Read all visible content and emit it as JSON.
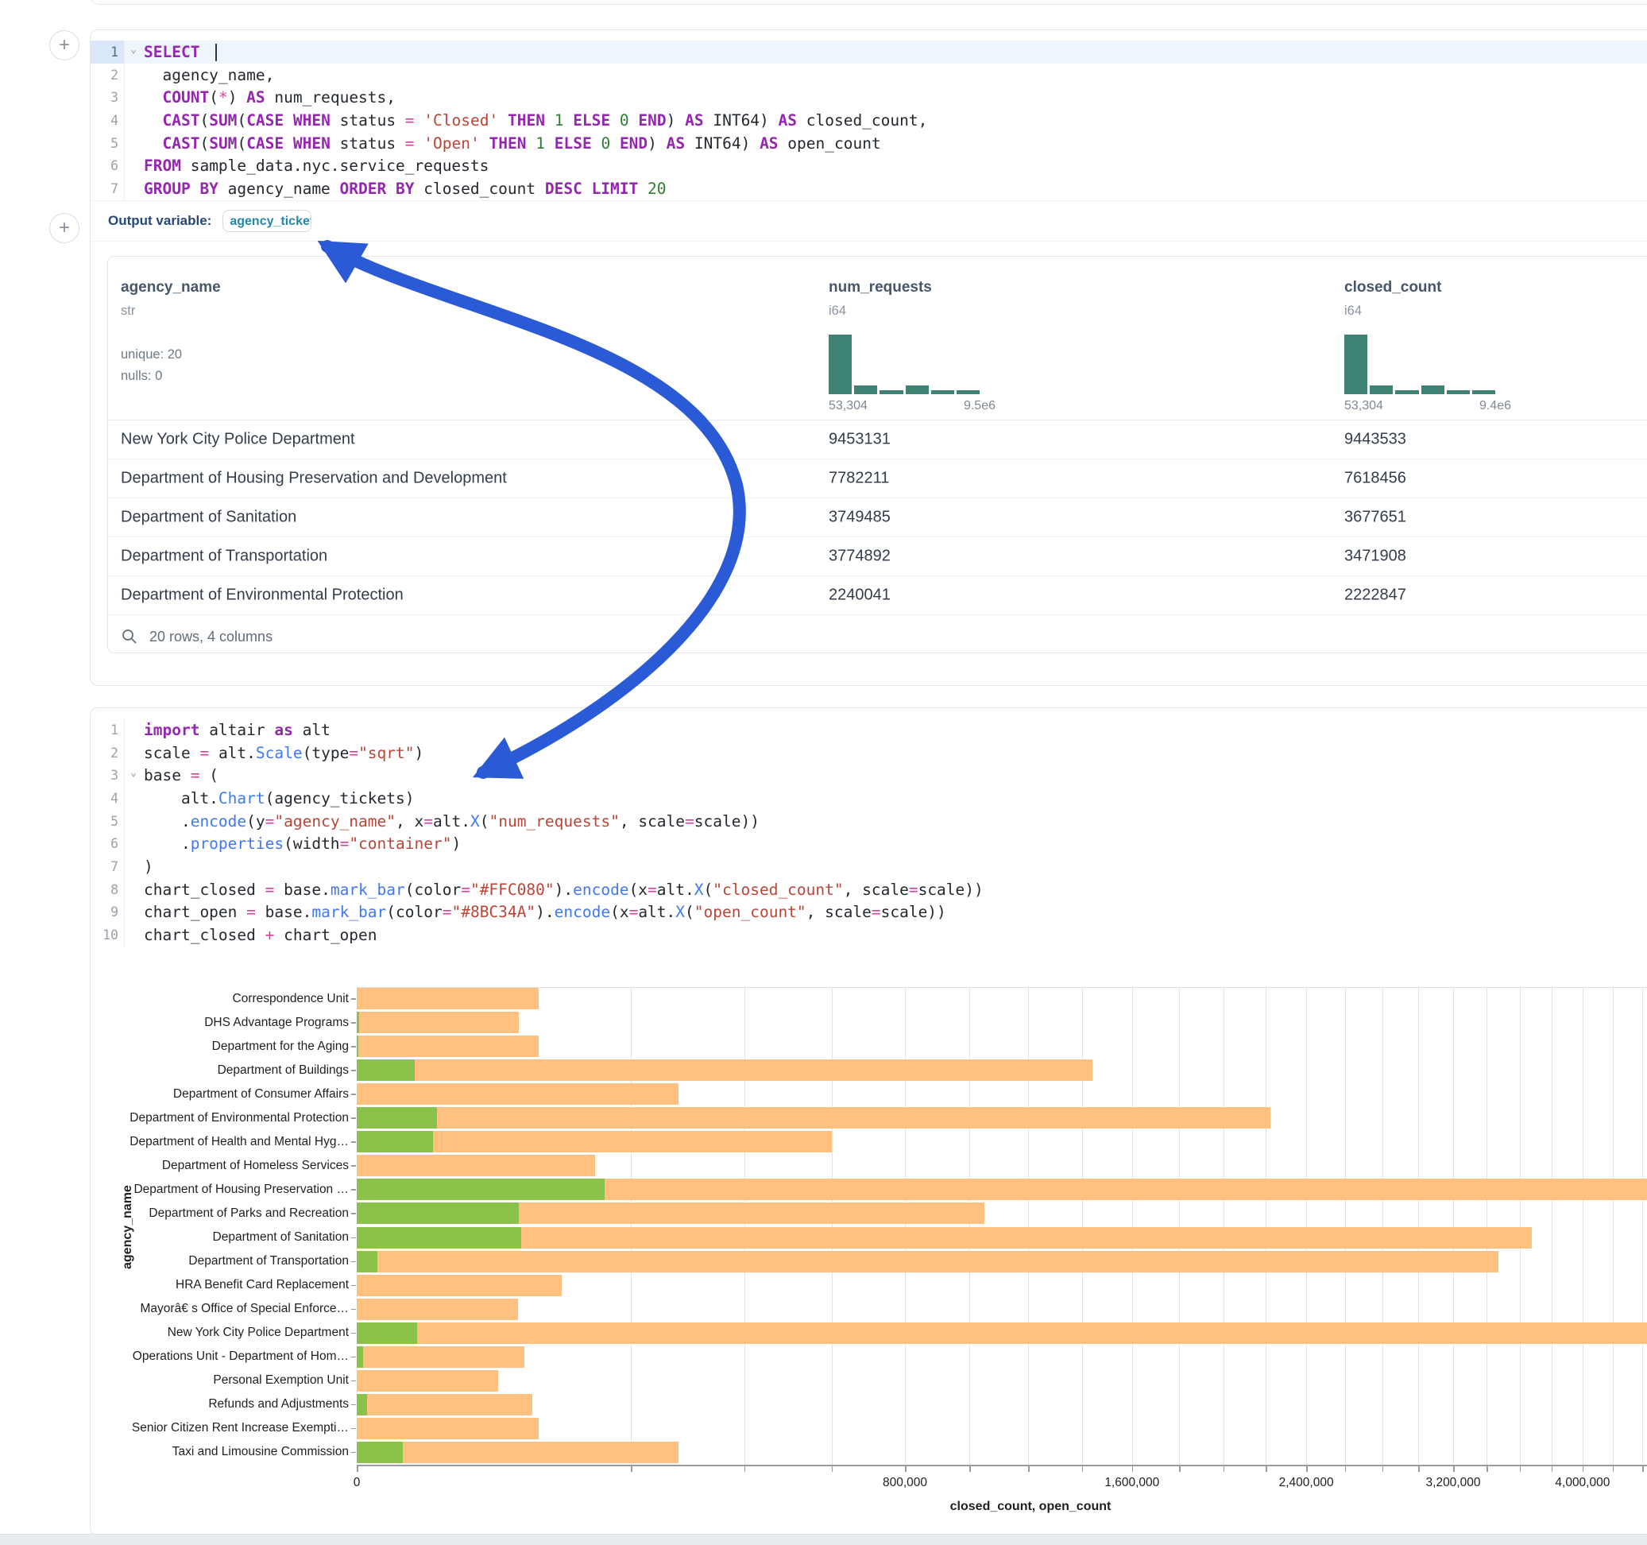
{
  "sql_cell": {
    "lines": [
      {
        "n": "1",
        "chev": true,
        "active": true,
        "toks": [
          [
            "k",
            "SELECT"
          ],
          [
            "d",
            " "
          ],
          [
            "caret",
            ""
          ]
        ]
      },
      {
        "n": "2",
        "toks": [
          [
            "d",
            "  agency_name,"
          ]
        ]
      },
      {
        "n": "3",
        "toks": [
          [
            "d",
            "  "
          ],
          [
            "k",
            "COUNT"
          ],
          [
            "d",
            "("
          ],
          [
            "o",
            "*"
          ],
          [
            "d",
            ") "
          ],
          [
            "k",
            "AS"
          ],
          [
            "d",
            " num_requests,"
          ]
        ]
      },
      {
        "n": "4",
        "toks": [
          [
            "d",
            "  "
          ],
          [
            "k",
            "CAST"
          ],
          [
            "d",
            "("
          ],
          [
            "k",
            "SUM"
          ],
          [
            "d",
            "("
          ],
          [
            "k",
            "CASE"
          ],
          [
            "d",
            " "
          ],
          [
            "k",
            "WHEN"
          ],
          [
            "d",
            " status "
          ],
          [
            "o",
            "="
          ],
          [
            "d",
            " "
          ],
          [
            "s",
            "'Closed'"
          ],
          [
            "d",
            " "
          ],
          [
            "k",
            "THEN"
          ],
          [
            "d",
            " "
          ],
          [
            "n",
            "1"
          ],
          [
            "d",
            " "
          ],
          [
            "k",
            "ELSE"
          ],
          [
            "d",
            " "
          ],
          [
            "n",
            "0"
          ],
          [
            "d",
            " "
          ],
          [
            "k",
            "END"
          ],
          [
            "d",
            ") "
          ],
          [
            "k",
            "AS"
          ],
          [
            "d",
            " INT64) "
          ],
          [
            "k",
            "AS"
          ],
          [
            "d",
            " closed_count,"
          ]
        ]
      },
      {
        "n": "5",
        "toks": [
          [
            "d",
            "  "
          ],
          [
            "k",
            "CAST"
          ],
          [
            "d",
            "("
          ],
          [
            "k",
            "SUM"
          ],
          [
            "d",
            "("
          ],
          [
            "k",
            "CASE"
          ],
          [
            "d",
            " "
          ],
          [
            "k",
            "WHEN"
          ],
          [
            "d",
            " status "
          ],
          [
            "o",
            "="
          ],
          [
            "d",
            " "
          ],
          [
            "s",
            "'Open'"
          ],
          [
            "d",
            " "
          ],
          [
            "k",
            "THEN"
          ],
          [
            "d",
            " "
          ],
          [
            "n",
            "1"
          ],
          [
            "d",
            " "
          ],
          [
            "k",
            "ELSE"
          ],
          [
            "d",
            " "
          ],
          [
            "n",
            "0"
          ],
          [
            "d",
            " "
          ],
          [
            "k",
            "END"
          ],
          [
            "d",
            ") "
          ],
          [
            "k",
            "AS"
          ],
          [
            "d",
            " INT64) "
          ],
          [
            "k",
            "AS"
          ],
          [
            "d",
            " open_count"
          ]
        ]
      },
      {
        "n": "6",
        "toks": [
          [
            "k",
            "FROM"
          ],
          [
            "d",
            " sample_data.nyc.service_requests"
          ]
        ]
      },
      {
        "n": "7",
        "toks": [
          [
            "k",
            "GROUP BY"
          ],
          [
            "d",
            " agency_name "
          ],
          [
            "k",
            "ORDER BY"
          ],
          [
            "d",
            " closed_count "
          ],
          [
            "k",
            "DESC"
          ],
          [
            "d",
            " "
          ],
          [
            "k",
            "LIMIT"
          ],
          [
            "d",
            " "
          ],
          [
            "n",
            "20"
          ]
        ]
      }
    ],
    "output_variable_label": "Output variable:",
    "output_variable_value": "agency_tickets"
  },
  "table": {
    "columns": [
      {
        "name": "agency_name",
        "type": "str",
        "meta": [
          "unique: 20",
          "nulls: 0"
        ]
      },
      {
        "name": "num_requests",
        "type": "i64",
        "hist": {
          "heights": [
            100,
            15,
            7,
            15,
            6,
            6
          ],
          "min_label": "53,304",
          "max_label": "9.5e6"
        }
      },
      {
        "name": "closed_count",
        "type": "i64",
        "hist": {
          "heights": [
            100,
            15,
            7,
            15,
            6,
            6
          ],
          "min_label": "53,304",
          "max_label": "9.4e6"
        }
      }
    ],
    "rows": [
      [
        "New York City Police Department",
        "9453131",
        "9443533"
      ],
      [
        "Department of Housing Preservation and Development",
        "7782211",
        "7618456"
      ],
      [
        "Department of Sanitation",
        "3749485",
        "3677651"
      ],
      [
        "Department of Transportation",
        "3774892",
        "3471908"
      ],
      [
        "Department of Environmental Protection",
        "2240041",
        "2222847"
      ]
    ],
    "footer": "20 rows, 4 columns"
  },
  "python_cell": {
    "lines": [
      {
        "n": "1",
        "toks": [
          [
            "k",
            "import"
          ],
          [
            "d",
            " altair "
          ],
          [
            "k",
            "as"
          ],
          [
            "d",
            " alt"
          ]
        ]
      },
      {
        "n": "2",
        "toks": [
          [
            "d",
            "scale "
          ],
          [
            "o",
            "="
          ],
          [
            "d",
            " alt."
          ],
          [
            "f",
            "Scale"
          ],
          [
            "d",
            "(type"
          ],
          [
            "o",
            "="
          ],
          [
            "s",
            "\"sqrt\""
          ],
          [
            "d",
            ")"
          ]
        ]
      },
      {
        "n": "3",
        "chev": true,
        "toks": [
          [
            "d",
            "base "
          ],
          [
            "o",
            "="
          ],
          [
            "d",
            " ("
          ]
        ]
      },
      {
        "n": "4",
        "toks": [
          [
            "d",
            "    alt."
          ],
          [
            "f",
            "Chart"
          ],
          [
            "d",
            "(agency_tickets)"
          ]
        ]
      },
      {
        "n": "5",
        "toks": [
          [
            "d",
            "    ."
          ],
          [
            "f",
            "encode"
          ],
          [
            "d",
            "(y"
          ],
          [
            "o",
            "="
          ],
          [
            "s",
            "\"agency_name\""
          ],
          [
            "d",
            ", x"
          ],
          [
            "o",
            "="
          ],
          [
            "d",
            "alt."
          ],
          [
            "f",
            "X"
          ],
          [
            "d",
            "("
          ],
          [
            "s",
            "\"num_requests\""
          ],
          [
            "d",
            ", scale"
          ],
          [
            "o",
            "="
          ],
          [
            "d",
            "scale))"
          ]
        ]
      },
      {
        "n": "6",
        "toks": [
          [
            "d",
            "    ."
          ],
          [
            "f",
            "properties"
          ],
          [
            "d",
            "(width"
          ],
          [
            "o",
            "="
          ],
          [
            "s",
            "\"container\""
          ],
          [
            "d",
            ")"
          ]
        ]
      },
      {
        "n": "7",
        "toks": [
          [
            "d",
            ")"
          ]
        ]
      },
      {
        "n": "8",
        "toks": [
          [
            "d",
            "chart_closed "
          ],
          [
            "o",
            "="
          ],
          [
            "d",
            " base."
          ],
          [
            "f",
            "mark_bar"
          ],
          [
            "d",
            "(color"
          ],
          [
            "o",
            "="
          ],
          [
            "s",
            "\"#FFC080\""
          ],
          [
            "d",
            ")."
          ],
          [
            "f",
            "encode"
          ],
          [
            "d",
            "(x"
          ],
          [
            "o",
            "="
          ],
          [
            "d",
            "alt."
          ],
          [
            "f",
            "X"
          ],
          [
            "d",
            "("
          ],
          [
            "s",
            "\"closed_count\""
          ],
          [
            "d",
            ", scale"
          ],
          [
            "o",
            "="
          ],
          [
            "d",
            "scale))"
          ]
        ]
      },
      {
        "n": "9",
        "toks": [
          [
            "d",
            "chart_open "
          ],
          [
            "o",
            "="
          ],
          [
            "d",
            " base."
          ],
          [
            "f",
            "mark_bar"
          ],
          [
            "d",
            "(color"
          ],
          [
            "o",
            "="
          ],
          [
            "s",
            "\"#8BC34A\""
          ],
          [
            "d",
            ")."
          ],
          [
            "f",
            "encode"
          ],
          [
            "d",
            "(x"
          ],
          [
            "o",
            "="
          ],
          [
            "d",
            "alt."
          ],
          [
            "f",
            "X"
          ],
          [
            "d",
            "("
          ],
          [
            "s",
            "\"open_count\""
          ],
          [
            "d",
            ", scale"
          ],
          [
            "o",
            "="
          ],
          [
            "d",
            "scale))"
          ]
        ]
      },
      {
        "n": "10",
        "toks": [
          [
            "d",
            "chart_closed "
          ],
          [
            "o",
            "+"
          ],
          [
            "d",
            " chart_open"
          ]
        ]
      }
    ]
  },
  "chart_data": {
    "type": "bar",
    "orientation": "horizontal",
    "xlabel": "closed_count, open_count",
    "ylabel": "agency_name",
    "x_scale": "sqrt",
    "x_tick_values": [
      0,
      800000,
      1600000,
      2400000,
      3200000,
      4000000
    ],
    "x_tick_labels": [
      "0",
      "800,000",
      "1,600,000",
      "2,400,000",
      "3,200,000",
      "4,000,000"
    ],
    "grid_step": 200000,
    "grid_max": 4400000,
    "legend": "none",
    "categories": [
      "Correspondence Unit",
      "DHS Advantage Programs",
      "Department for the Aging",
      "Department of Buildings",
      "Department of Consumer Affairs",
      "Department of Environmental Protection",
      "Department of Health and Mental Hyg…",
      "Department of Homeless Services",
      "Department of Housing Preservation …",
      "Department of Parks and Recreation",
      "Department of Sanitation",
      "Department of Transportation",
      "HRA Benefit Card Replacement",
      "Mayorâ€ s Office of Special Enforce…",
      "New York City Police Department",
      "Operations Unit - Department of Hom…",
      "Personal Exemption Unit",
      "Refunds and Adjustments",
      "Senior Citizen Rent Increase Exempti…",
      "Taxi and Limousine Commission"
    ],
    "series": [
      {
        "name": "closed_count",
        "color": "#FFC080",
        "values": [
          88000,
          70000,
          88000,
          1440000,
          276000,
          2222847,
          600000,
          151000,
          7618456,
          1048000,
          3677651,
          3471908,
          112000,
          69000,
          9443533,
          75000,
          53304,
          82000,
          88000,
          276000
        ]
      },
      {
        "name": "open_count",
        "color": "#8BC34A",
        "values": [
          0,
          20,
          10,
          9000,
          0,
          17194,
          15500,
          0,
          163755,
          70000,
          71834,
          1100,
          0,
          0,
          9598,
          100,
          0,
          300,
          0,
          5700
        ]
      }
    ]
  },
  "arrow": {
    "color": "#2b5ad6"
  }
}
